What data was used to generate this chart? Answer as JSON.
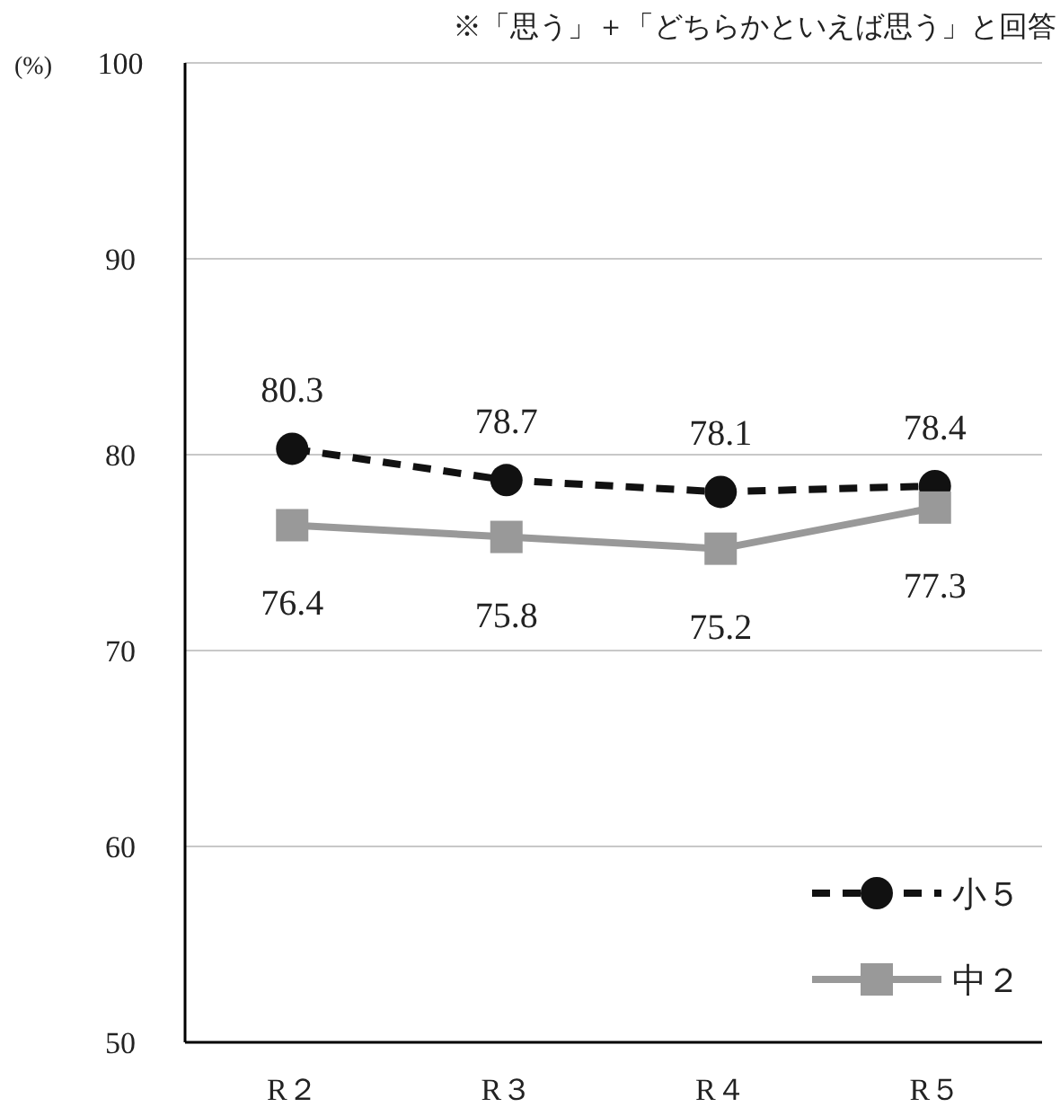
{
  "chart_data": {
    "type": "line",
    "categories": [
      "R２",
      "R３",
      "R４",
      "R５"
    ],
    "series": [
      {
        "name": "小５",
        "color": "#111111",
        "values": [
          80.3,
          78.7,
          78.1,
          78.4
        ],
        "marker": "circle",
        "line_style": "dashed"
      },
      {
        "name": "中２",
        "color": "#999999",
        "values": [
          76.4,
          75.8,
          75.2,
          77.3
        ],
        "marker": "square",
        "line_style": "solid"
      }
    ],
    "ylabel": "(%)",
    "ylim": [
      50,
      100
    ],
    "yticks": [
      50,
      60,
      70,
      80,
      90,
      100
    ],
    "grid": "y",
    "data_labels": true,
    "legend": "bottom right",
    "annotations": [
      "※「思う」＋「どちらかといえば思う」と回答"
    ]
  }
}
